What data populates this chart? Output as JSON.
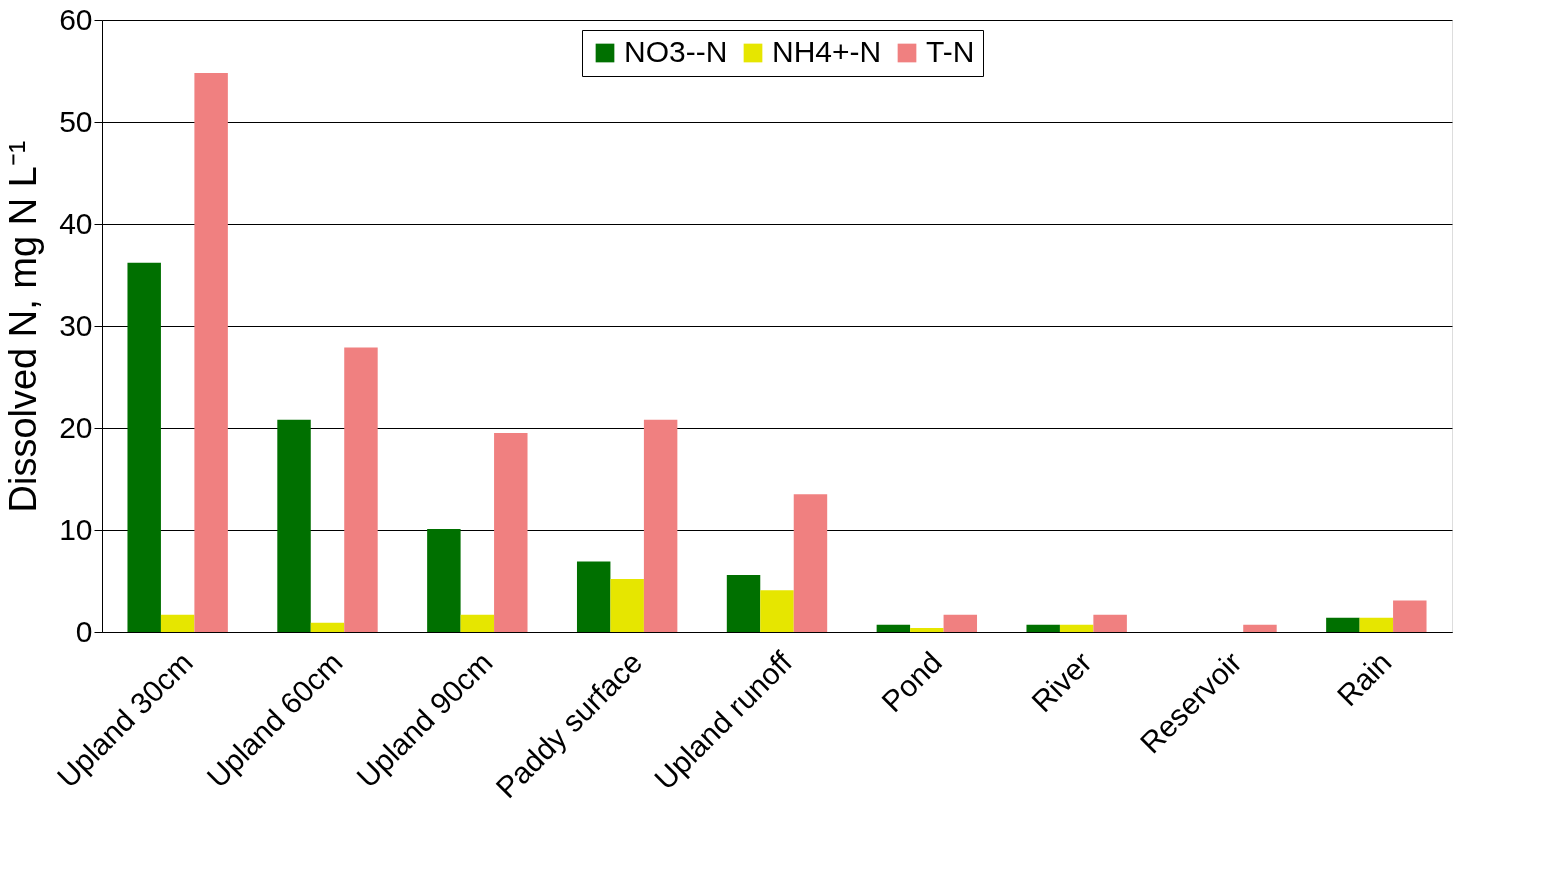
{
  "chart_data": {
    "type": "bar",
    "ylabel": "Dissolved N, mg N L⁻¹",
    "categories": [
      "Upland 30cm",
      "Upland 60cm",
      "Upland 90cm",
      "Paddy surface",
      "Upland runoff",
      "Pond",
      "River",
      "Reservoir",
      "Rain"
    ],
    "series": [
      {
        "name": "NO3--N",
        "color": "#007000",
        "values": [
          36.2,
          20.8,
          10.1,
          6.9,
          5.6,
          0.7,
          0.7,
          null,
          1.4
        ]
      },
      {
        "name": "NH4+-N",
        "color": "#e6e600",
        "values": [
          1.7,
          0.9,
          1.7,
          5.2,
          4.1,
          0.4,
          0.7,
          null,
          1.4
        ]
      },
      {
        "name": "T-N",
        "color": "#f08080",
        "values": [
          54.8,
          27.9,
          19.5,
          20.8,
          13.5,
          1.7,
          1.7,
          0.7,
          3.1
        ]
      }
    ],
    "ylim": [
      0,
      60
    ],
    "yticks": [
      0,
      10,
      20,
      30,
      40,
      50,
      60
    ],
    "grid": "y",
    "legend": "top"
  }
}
